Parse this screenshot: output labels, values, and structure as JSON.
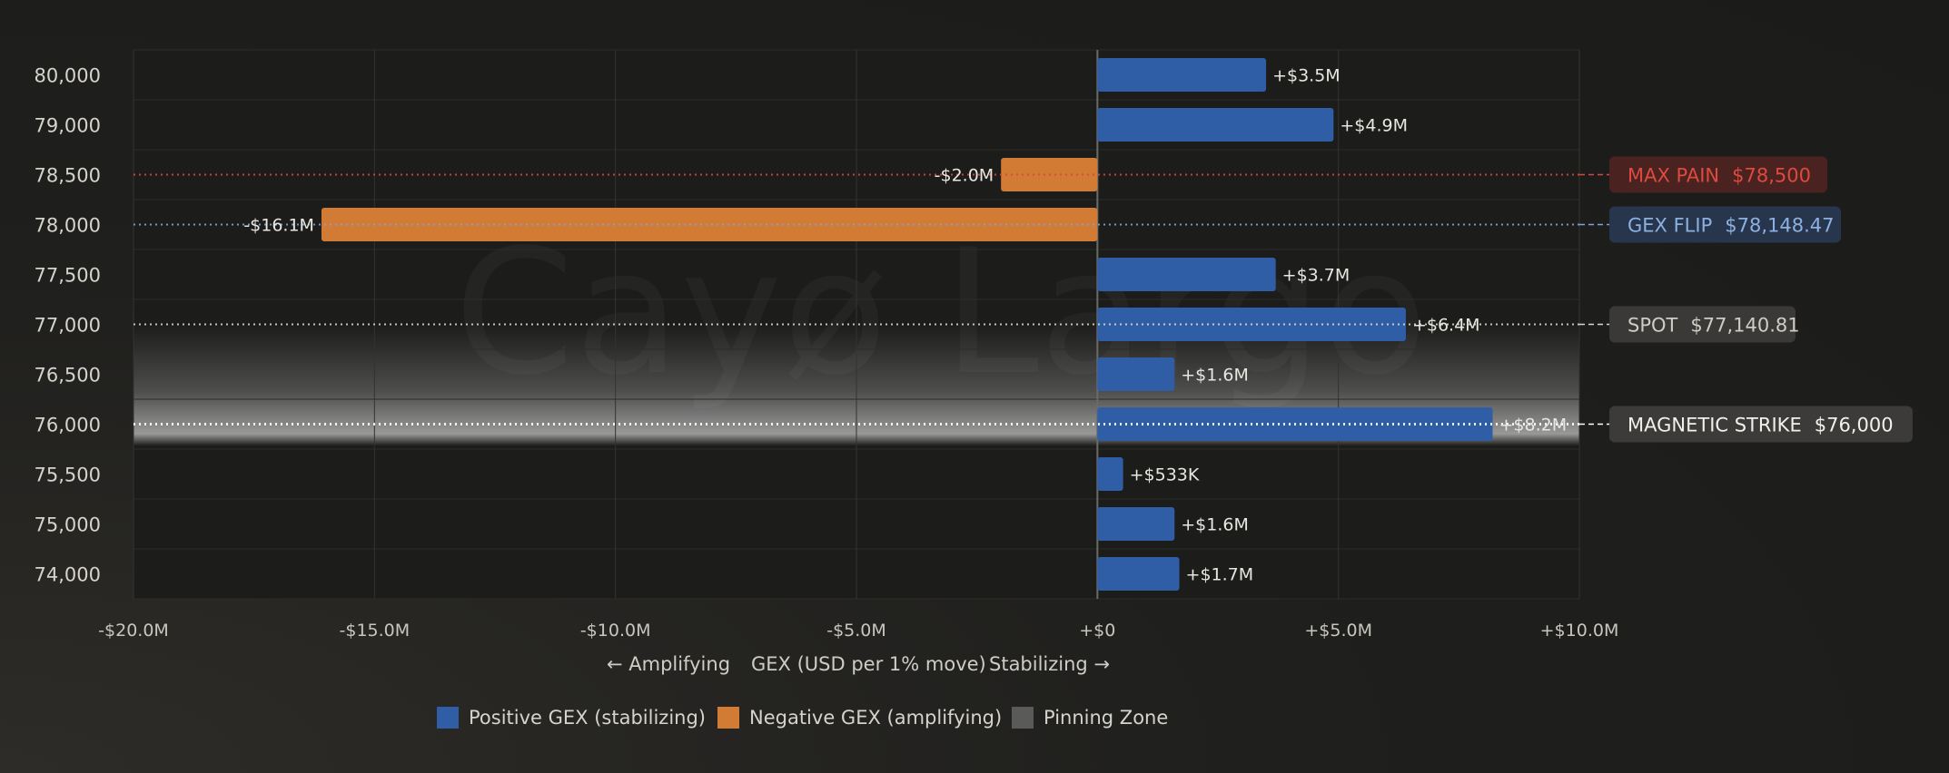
{
  "chart_data": {
    "type": "bar",
    "orientation": "horizontal",
    "watermark": "Cayø Largo",
    "categories": [
      "80,000",
      "79,000",
      "78,500",
      "78,000",
      "77,500",
      "77,000",
      "76,500",
      "76,000",
      "75,500",
      "75,000",
      "74,000"
    ],
    "values": [
      3.5,
      4.9,
      -2.0,
      -16.1,
      3.7,
      6.4,
      1.6,
      8.2,
      0.533,
      1.6,
      1.7
    ],
    "value_labels": [
      "+$3.5M",
      "+$4.9M",
      "-$2.0M",
      "-$16.1M",
      "+$3.7M",
      "+$6.4M",
      "+$1.6M",
      "+$8.2M",
      "+$533K",
      "+$1.6M",
      "+$1.7M"
    ],
    "value_unit": "USD millions",
    "xlim": [
      -20,
      10
    ],
    "xticks": [
      -20,
      -15,
      -10,
      -5,
      0,
      5,
      10
    ],
    "xtick_labels": [
      "-$20.0M",
      "-$15.0M",
      "-$10.0M",
      "-$5.0M",
      "+$0",
      "+$5.0M",
      "+$10.0M"
    ],
    "xlabel": {
      "left": "← Amplifying",
      "center": "GEX (USD per 1% move)",
      "right": "Stabilizing →"
    },
    "grid": true,
    "pinning_zone": {
      "from": "77,000",
      "to": "76,000"
    },
    "markers": [
      {
        "key": "max_pain",
        "category": "78,500",
        "label": "MAX PAIN",
        "value": "$78,500",
        "color": "#d4483f",
        "line_style": "dotted"
      },
      {
        "key": "gex_flip",
        "category": "78,000",
        "label": "GEX FLIP",
        "value": "$78,148.47",
        "color": "#7fa3d6",
        "line_style": "dotted"
      },
      {
        "key": "spot",
        "category": "77,000",
        "label": "SPOT",
        "value": "$77,140.81",
        "color": "#d8d6d0",
        "line_style": "dotted"
      },
      {
        "key": "magnetic_strike",
        "category": "76,000",
        "label": "MAGNETIC STRIKE",
        "value": "$76,000",
        "color": "#ffffff",
        "line_style": "dotted"
      }
    ],
    "legend": {
      "position": "bottom-center",
      "items": [
        {
          "label": "Positive GEX (stabilizing)",
          "color": "#2f5ea6"
        },
        {
          "label": "Negative GEX (amplifying)",
          "color": "#d27b34"
        },
        {
          "label": "Pinning Zone",
          "color": "#5a5a58"
        }
      ]
    },
    "colors": {
      "positive": "#2f5ea6",
      "negative": "#d27b34"
    }
  }
}
